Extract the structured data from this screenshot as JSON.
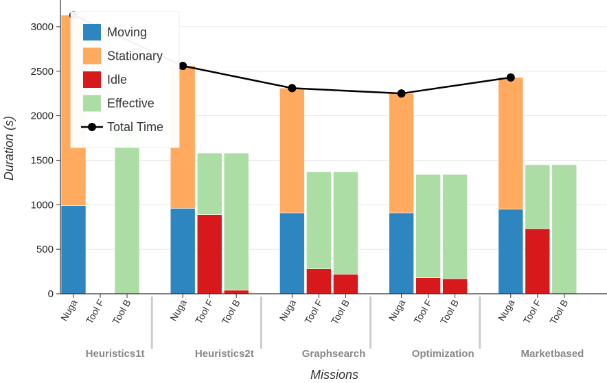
{
  "chart_data": {
    "type": "bar",
    "stacked": true,
    "xlabel": "Missions",
    "ylabel": "Duration (s)",
    "ylim": [
      0,
      3300
    ],
    "yticks": [
      0,
      500,
      1000,
      1500,
      2000,
      2500,
      3000
    ],
    "grid": "horizontal",
    "legend_position": "top-left",
    "groups": [
      "Heuristics1t",
      "Heuristics2t",
      "Graphsearch",
      "Optimization",
      "Marketbased"
    ],
    "subcategories": [
      "Nuga",
      "Tool F",
      "Tool B"
    ],
    "series": [
      {
        "name": "Moving",
        "color": "#2e86c1",
        "values": [
          [
            990,
            0,
            0
          ],
          [
            960,
            0,
            0
          ],
          [
            910,
            0,
            0
          ],
          [
            910,
            0,
            0
          ],
          [
            950,
            0,
            0
          ]
        ]
      },
      {
        "name": "Stationary",
        "color": "#ffaa5e",
        "values": [
          [
            2140,
            0,
            0
          ],
          [
            1600,
            0,
            0
          ],
          [
            1400,
            0,
            0
          ],
          [
            1340,
            0,
            0
          ],
          [
            1480,
            0,
            0
          ]
        ]
      },
      {
        "name": "Idle",
        "color": "#d7191c",
        "values": [
          [
            0,
            0,
            0
          ],
          [
            0,
            890,
            40
          ],
          [
            0,
            280,
            220
          ],
          [
            0,
            180,
            170
          ],
          [
            0,
            730,
            0
          ]
        ]
      },
      {
        "name": "Effective",
        "color": "#abdda4",
        "values": [
          [
            0,
            0,
            1880
          ],
          [
            0,
            690,
            1540
          ],
          [
            0,
            1090,
            1150
          ],
          [
            0,
            1160,
            1170
          ],
          [
            0,
            720,
            1450
          ]
        ]
      }
    ],
    "line": {
      "name": "Total Time",
      "color": "#000000",
      "values": [
        3130,
        2560,
        2310,
        2250,
        2430
      ]
    }
  }
}
